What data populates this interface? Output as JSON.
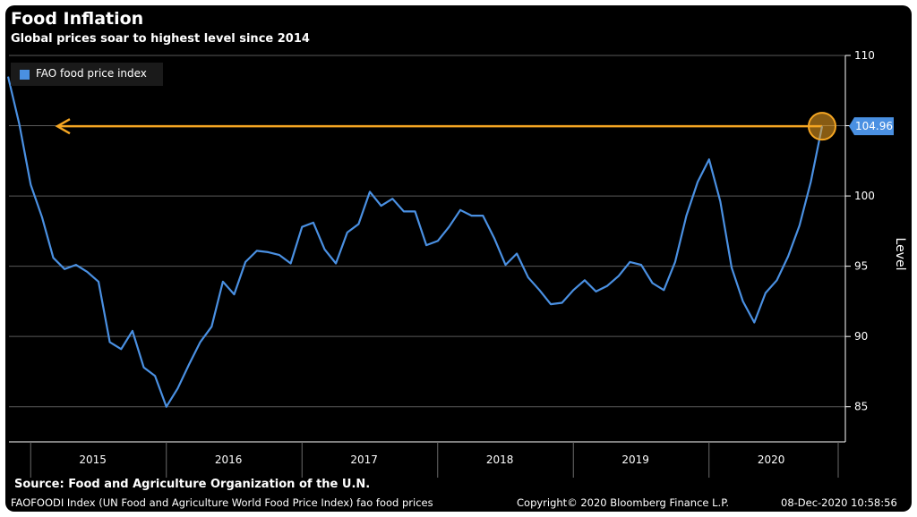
{
  "chart_data": {
    "type": "line",
    "title": "Food Inflation",
    "subtitle": "Global prices soar to highest level since 2014",
    "ylabel": "Level",
    "ylim": [
      82.5,
      110
    ],
    "y_ticks": [
      85,
      90,
      95,
      100,
      105,
      110
    ],
    "y_tick_labels": [
      "85",
      "90",
      "95",
      "100",
      "",
      "110"
    ],
    "x_tick_labels": [
      "2015",
      "2016",
      "2017",
      "2018",
      "2019",
      "2020"
    ],
    "x_start": "2014-11",
    "grid": true,
    "legend_position": "top-left",
    "series": [
      {
        "name": "FAO food price index",
        "color": "#4a90e2",
        "x": [
          "2014-11",
          "2014-12",
          "2015-01",
          "2015-02",
          "2015-03",
          "2015-04",
          "2015-05",
          "2015-06",
          "2015-07",
          "2015-08",
          "2015-09",
          "2015-10",
          "2015-11",
          "2015-12",
          "2016-01",
          "2016-02",
          "2016-03",
          "2016-04",
          "2016-05",
          "2016-06",
          "2016-07",
          "2016-08",
          "2016-09",
          "2016-10",
          "2016-11",
          "2016-12",
          "2017-01",
          "2017-02",
          "2017-03",
          "2017-04",
          "2017-05",
          "2017-06",
          "2017-07",
          "2017-08",
          "2017-09",
          "2017-10",
          "2017-11",
          "2017-12",
          "2018-01",
          "2018-02",
          "2018-03",
          "2018-04",
          "2018-05",
          "2018-06",
          "2018-07",
          "2018-08",
          "2018-09",
          "2018-10",
          "2018-11",
          "2018-12",
          "2019-01",
          "2019-02",
          "2019-03",
          "2019-04",
          "2019-05",
          "2019-06",
          "2019-07",
          "2019-08",
          "2019-09",
          "2019-10",
          "2019-11",
          "2019-12",
          "2020-01",
          "2020-02",
          "2020-03",
          "2020-04",
          "2020-05",
          "2020-06",
          "2020-07",
          "2020-08",
          "2020-09",
          "2020-10",
          "2020-11"
        ],
        "values": [
          108.5,
          105.1,
          100.8,
          98.5,
          95.6,
          94.8,
          95.1,
          94.6,
          93.9,
          89.6,
          89.1,
          90.4,
          87.8,
          87.2,
          85.0,
          86.3,
          88.0,
          89.6,
          90.7,
          93.9,
          93.0,
          95.3,
          96.1,
          96.0,
          95.8,
          95.2,
          97.8,
          98.1,
          96.2,
          95.2,
          97.4,
          98.0,
          100.3,
          99.3,
          99.8,
          98.9,
          98.9,
          96.5,
          96.8,
          97.8,
          99.0,
          98.6,
          98.6,
          97.0,
          95.1,
          95.9,
          94.2,
          93.3,
          92.3,
          92.4,
          93.3,
          94.0,
          93.2,
          93.6,
          94.3,
          95.3,
          95.1,
          93.8,
          93.3,
          95.3,
          98.6,
          101.0,
          102.6,
          99.6,
          94.9,
          92.5,
          91.0,
          93.1,
          94.0,
          95.7,
          97.9,
          101.0,
          104.96
        ]
      }
    ],
    "annotations": [
      {
        "type": "arrow-line",
        "color": "#f5a623",
        "value": 104.96
      },
      {
        "type": "circle-marker",
        "color": "#f5a623",
        "x": "2020-11",
        "value": 104.96
      },
      {
        "type": "last-value-label",
        "text": "104.96",
        "color": "#4a90e2"
      }
    ]
  },
  "footer": {
    "source": "Source: Food and Agriculture Organization of the U.N.",
    "ticker": "FAOFOODI Index (UN Food and Agriculture World Food Price Index) fao food prices",
    "copyright": "Copyright© 2020 Bloomberg Finance L.P.",
    "timestamp": "08-Dec-2020 10:58:56"
  }
}
